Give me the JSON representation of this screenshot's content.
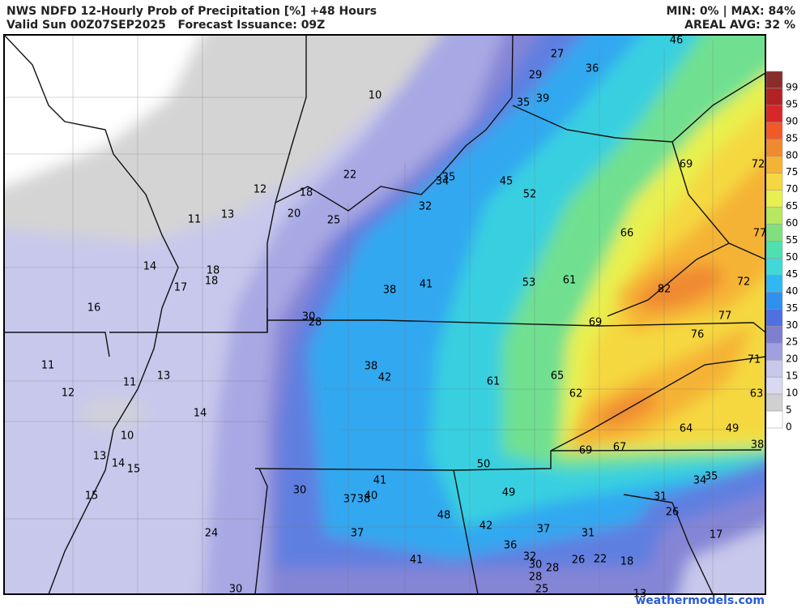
{
  "header": {
    "title": "NWS NDFD 12-Hourly Prob of Precipitation [%] +48 Hours",
    "subtitle": "Valid Sun 00Z07SEP2025   Forecast Issuance: 09Z",
    "minmax": "MIN: 0% | MAX: 84%",
    "areal": "AREAL AVG: 32 %"
  },
  "legend": {
    "values": [
      99,
      95,
      90,
      85,
      80,
      75,
      70,
      65,
      60,
      55,
      50,
      45,
      40,
      35,
      30,
      25,
      20,
      15,
      10,
      5,
      0
    ],
    "colors": [
      "#8b2c2c",
      "#b22222",
      "#d62828",
      "#f05a28",
      "#f08a30",
      "#f5b335",
      "#f5d840",
      "#e8f050",
      "#b8e860",
      "#80e080",
      "#50e0b0",
      "#40d8d8",
      "#30b8f0",
      "#3090f0",
      "#4f70e0",
      "#7f7fd0",
      "#a0a0e0",
      "#c8c8ec",
      "#d8d8f0",
      "#d0d0d0",
      "#ffffff"
    ]
  },
  "map_labels": [
    46,
    27,
    36,
    29,
    10,
    35,
    39,
    69,
    72,
    22,
    35,
    34,
    45,
    12,
    18,
    52,
    20,
    25,
    32,
    11,
    13,
    66,
    77,
    14,
    18,
    18,
    17,
    53,
    61,
    82,
    72,
    38,
    41,
    16,
    30,
    28,
    77,
    69,
    76,
    71,
    11,
    38,
    42,
    61,
    65,
    13,
    11,
    12,
    62,
    63,
    14,
    64,
    49,
    10,
    69,
    67,
    38,
    13,
    14,
    15,
    50,
    41,
    35,
    34,
    30,
    15,
    37,
    38,
    40,
    49,
    31,
    48,
    26,
    42,
    37,
    24,
    37,
    31,
    17,
    36,
    32,
    41,
    26,
    22,
    18,
    30,
    28,
    28,
    25,
    30,
    13
  ],
  "watermark": "weathermodels.com"
}
